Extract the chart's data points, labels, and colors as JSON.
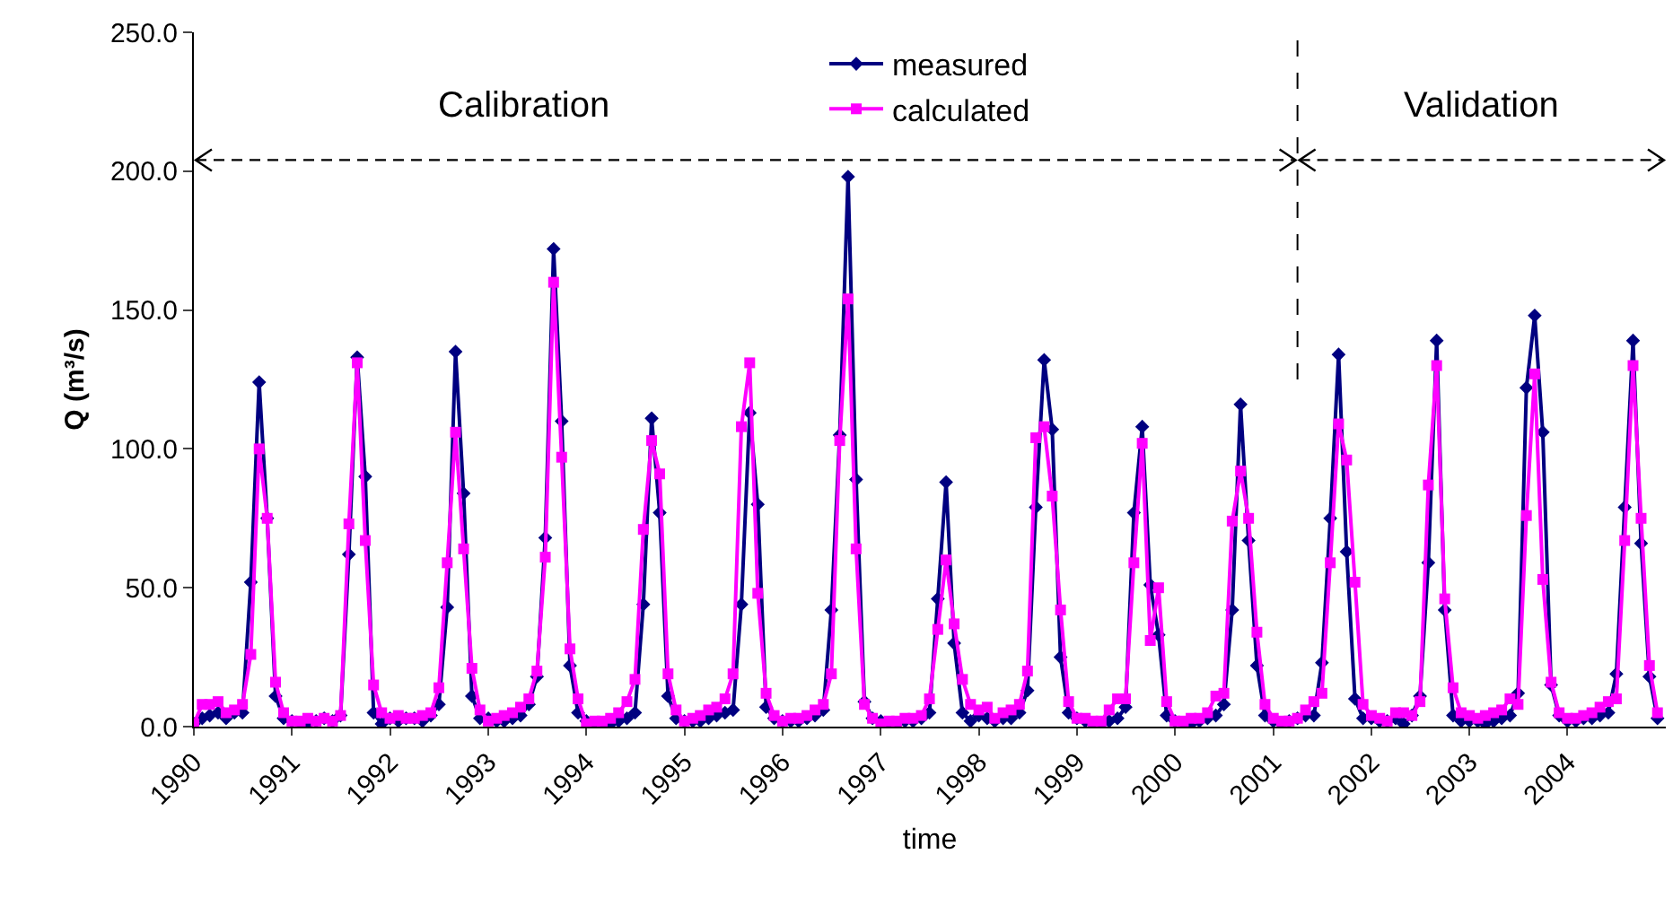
{
  "chart_data": {
    "type": "line",
    "xlabel": "time",
    "ylabel": "Q (m³/s)",
    "x": [
      "1990-01",
      "1990-02",
      "1990-03",
      "1990-04",
      "1990-05",
      "1990-06",
      "1990-07",
      "1990-08",
      "1990-09",
      "1990-10",
      "1990-11",
      "1990-12",
      "1991-01",
      "1991-02",
      "1991-03",
      "1991-04",
      "1991-05",
      "1991-06",
      "1991-07",
      "1991-08",
      "1991-09",
      "1991-10",
      "1991-11",
      "1991-12",
      "1992-01",
      "1992-02",
      "1992-03",
      "1992-04",
      "1992-05",
      "1992-06",
      "1992-07",
      "1992-08",
      "1992-09",
      "1992-10",
      "1992-11",
      "1992-12",
      "1993-01",
      "1993-02",
      "1993-03",
      "1993-04",
      "1993-05",
      "1993-06",
      "1993-07",
      "1993-08",
      "1993-09",
      "1993-10",
      "1993-11",
      "1993-12",
      "1994-01",
      "1994-02",
      "1994-03",
      "1994-04",
      "1994-05",
      "1994-06",
      "1994-07",
      "1994-08",
      "1994-09",
      "1994-10",
      "1994-11",
      "1994-12",
      "1995-01",
      "1995-02",
      "1995-03",
      "1995-04",
      "1995-05",
      "1995-06",
      "1995-07",
      "1995-08",
      "1995-09",
      "1995-10",
      "1995-11",
      "1995-12",
      "1996-01",
      "1996-02",
      "1996-03",
      "1996-04",
      "1996-05",
      "1996-06",
      "1996-07",
      "1996-08",
      "1996-09",
      "1996-10",
      "1996-11",
      "1996-12",
      "1997-01",
      "1997-02",
      "1997-03",
      "1997-04",
      "1997-05",
      "1997-06",
      "1997-07",
      "1997-08",
      "1997-09",
      "1997-10",
      "1997-11",
      "1997-12",
      "1998-01",
      "1998-02",
      "1998-03",
      "1998-04",
      "1998-05",
      "1998-06",
      "1998-07",
      "1998-08",
      "1998-09",
      "1998-10",
      "1998-11",
      "1998-12",
      "1999-01",
      "1999-02",
      "1999-03",
      "1999-04",
      "1999-05",
      "1999-06",
      "1999-07",
      "1999-08",
      "1999-09",
      "1999-10",
      "1999-11",
      "1999-12",
      "2000-01",
      "2000-02",
      "2000-03",
      "2000-04",
      "2000-05",
      "2000-06",
      "2000-07",
      "2000-08",
      "2000-09",
      "2000-10",
      "2000-11",
      "2000-12",
      "2001-01",
      "2001-02",
      "2001-03",
      "2001-04",
      "2001-05",
      "2001-06",
      "2001-07",
      "2001-08",
      "2001-09",
      "2001-10",
      "2001-11",
      "2001-12",
      "2002-01",
      "2002-02",
      "2002-03",
      "2002-04",
      "2002-05",
      "2002-06",
      "2002-07",
      "2002-08",
      "2002-09",
      "2002-10",
      "2002-11",
      "2002-12",
      "2003-01",
      "2003-02",
      "2003-03",
      "2003-04",
      "2003-05",
      "2003-06",
      "2003-07",
      "2003-08",
      "2003-09",
      "2003-10",
      "2003-11",
      "2003-12",
      "2004-01",
      "2004-02",
      "2004-03",
      "2004-04",
      "2004-05",
      "2004-06",
      "2004-07",
      "2004-08",
      "2004-09",
      "2004-10",
      "2004-11",
      "2004-12"
    ],
    "series": [
      {
        "name": "measured",
        "color": "#000080",
        "marker": "diamond",
        "values": [
          1,
          3,
          4,
          5,
          3,
          5,
          5,
          52,
          124,
          75,
          11,
          3,
          2,
          1,
          1,
          2,
          3,
          2,
          4,
          62,
          133,
          90,
          5,
          1,
          3,
          2,
          3,
          3,
          2,
          4,
          8,
          43,
          135,
          84,
          11,
          3,
          3,
          2,
          2,
          3,
          4,
          8,
          18,
          68,
          172,
          110,
          22,
          5,
          2,
          1,
          1,
          1,
          2,
          3,
          5,
          44,
          111,
          77,
          11,
          3,
          2,
          2,
          2,
          3,
          4,
          5,
          6,
          44,
          113,
          80,
          7,
          3,
          2,
          2,
          2,
          3,
          4,
          6,
          42,
          105,
          198,
          89,
          9,
          3,
          2,
          1,
          1,
          2,
          2,
          3,
          5,
          46,
          88,
          30,
          5,
          2,
          4,
          3,
          2,
          3,
          3,
          5,
          13,
          79,
          132,
          107,
          25,
          5,
          3,
          2,
          1,
          1,
          2,
          3,
          7,
          77,
          108,
          51,
          33,
          4,
          2,
          1,
          1,
          2,
          3,
          4,
          8,
          42,
          116,
          67,
          22,
          4,
          2,
          1,
          2,
          3,
          4,
          4,
          23,
          75,
          134,
          63,
          10,
          3,
          3,
          2,
          2,
          3,
          1,
          4,
          11,
          59,
          139,
          42,
          4,
          2,
          2,
          2,
          1,
          2,
          3,
          4,
          12,
          122,
          148,
          106,
          15,
          4,
          2,
          2,
          3,
          3,
          4,
          5,
          19,
          79,
          139,
          66,
          18,
          3
        ]
      },
      {
        "name": "calculated",
        "color": "#ff00ff",
        "marker": "square",
        "values": [
          1,
          8,
          8,
          9,
          5,
          6,
          8,
          26,
          100,
          75,
          16,
          5,
          2,
          2,
          3,
          2,
          3,
          2,
          4,
          73,
          131,
          67,
          15,
          5,
          3,
          4,
          3,
          3,
          4,
          5,
          14,
          59,
          106,
          64,
          21,
          6,
          2,
          3,
          4,
          5,
          7,
          10,
          20,
          61,
          160,
          97,
          28,
          10,
          1,
          2,
          2,
          3,
          5,
          9,
          17,
          71,
          103,
          91,
          19,
          6,
          2,
          3,
          4,
          6,
          7,
          10,
          19,
          108,
          131,
          48,
          12,
          4,
          2,
          3,
          3,
          4,
          6,
          8,
          19,
          103,
          154,
          64,
          8,
          3,
          1,
          2,
          2,
          3,
          3,
          4,
          10,
          35,
          60,
          37,
          17,
          8,
          6,
          7,
          3,
          5,
          6,
          8,
          20,
          104,
          108,
          83,
          42,
          9,
          3,
          3,
          2,
          2,
          6,
          10,
          10,
          59,
          102,
          31,
          50,
          9,
          2,
          2,
          3,
          3,
          5,
          11,
          12,
          74,
          92,
          75,
          34,
          8,
          3,
          2,
          2,
          3,
          6,
          9,
          12,
          59,
          109,
          96,
          52,
          8,
          4,
          3,
          2,
          5,
          5,
          4,
          9,
          87,
          130,
          46,
          14,
          5,
          4,
          3,
          4,
          5,
          6,
          10,
          8,
          76,
          127,
          53,
          16,
          5,
          3,
          3,
          4,
          5,
          7,
          9,
          10,
          67,
          130,
          75,
          22,
          5
        ]
      }
    ],
    "xlim": [
      "1990-01",
      "2005-01"
    ],
    "xticks": [
      "1990",
      "1991",
      "1992",
      "1993",
      "1994",
      "1995",
      "1996",
      "1997",
      "1998",
      "1999",
      "2000",
      "2001",
      "2002",
      "2003",
      "2004"
    ],
    "ylim": [
      0,
      250
    ],
    "yticks": [
      {
        "value": 0,
        "label": "0.0"
      },
      {
        "value": 50,
        "label": "50.0"
      },
      {
        "value": 100,
        "label": "100.0"
      },
      {
        "value": 150,
        "label": "150.0"
      },
      {
        "value": 200,
        "label": "200.0"
      },
      {
        "value": 250,
        "label": "250.0"
      }
    ],
    "ref_lines": [
      {
        "axis": "x",
        "value": "2001-04",
        "line_style": "dashed"
      }
    ],
    "annotations": [
      "Calibration",
      "Validation"
    ],
    "grid": false,
    "legend": "top",
    "line_style": "solid"
  }
}
